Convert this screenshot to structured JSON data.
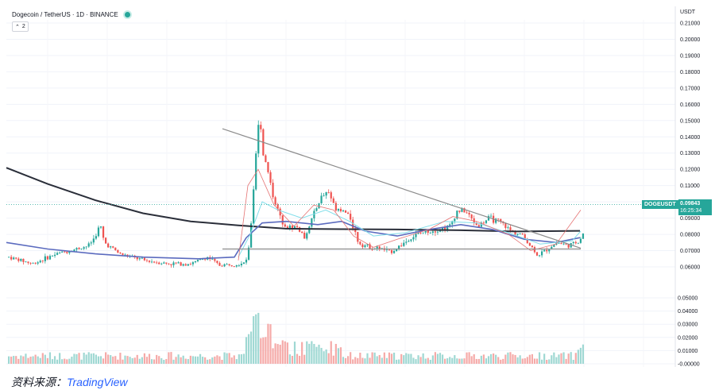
{
  "header": {
    "symbol_line": "Dogecoin / TetherUS · 1D · BINANCE",
    "indicator_toggle": "2"
  },
  "axis": {
    "currency": "USDT",
    "price_ticks": [
      "0.21000",
      "0.20000",
      "0.19000",
      "0.18000",
      "0.17000",
      "0.16000",
      "0.15000",
      "0.14000",
      "0.13000",
      "0.12000",
      "0.11000",
      "0.10000",
      "0.09000",
      "0.08000",
      "0.07000",
      "0.06000"
    ],
    "volume_ticks": [
      "0.05000",
      "0.04000",
      "0.03000",
      "0.02000",
      "0.01000",
      "-0.00000"
    ]
  },
  "price_tag": {
    "label": "DOGEUSDT",
    "price": "0.09843",
    "countdown": "16:25:34"
  },
  "footer": {
    "source_prefix": "资料来源：",
    "source_name": "TradingView"
  },
  "colors": {
    "up": "#26a69a",
    "down": "#ef5350",
    "ma_long": "#2a2e39",
    "ma_mid": "#5b6bbf",
    "ma_fast": "#e57373",
    "ma_cyan": "#80deea",
    "trendline": "#8c8c8c"
  },
  "chart_data": {
    "type": "candlestick",
    "instrument": "DOGEUSDT",
    "interval": "1D",
    "exchange": "BINANCE",
    "ylim": [
      -0.001,
      0.215
    ],
    "price_range": [
      0.055,
      0.215
    ],
    "last_price": 0.09843,
    "key_points": [
      {
        "event": "spike_high",
        "value": 0.159
      },
      {
        "event": "resistance_start",
        "value": 0.145
      },
      {
        "event": "support_level",
        "value": 0.071
      },
      {
        "event": "recent_breakout_high",
        "value": 0.1045
      }
    ],
    "series": [
      {
        "name": "MA long",
        "values": [
          0.121,
          0.111,
          0.101,
          0.093,
          0.088,
          0.085,
          0.083,
          0.083,
          0.0825,
          0.082,
          0.0815,
          0.0822
        ]
      },
      {
        "name": "MA mid",
        "values": [
          0.075,
          0.071,
          0.068,
          0.066,
          0.067,
          0.085,
          0.088,
          0.084,
          0.085,
          0.086,
          0.082,
          0.078
        ]
      }
    ]
  }
}
